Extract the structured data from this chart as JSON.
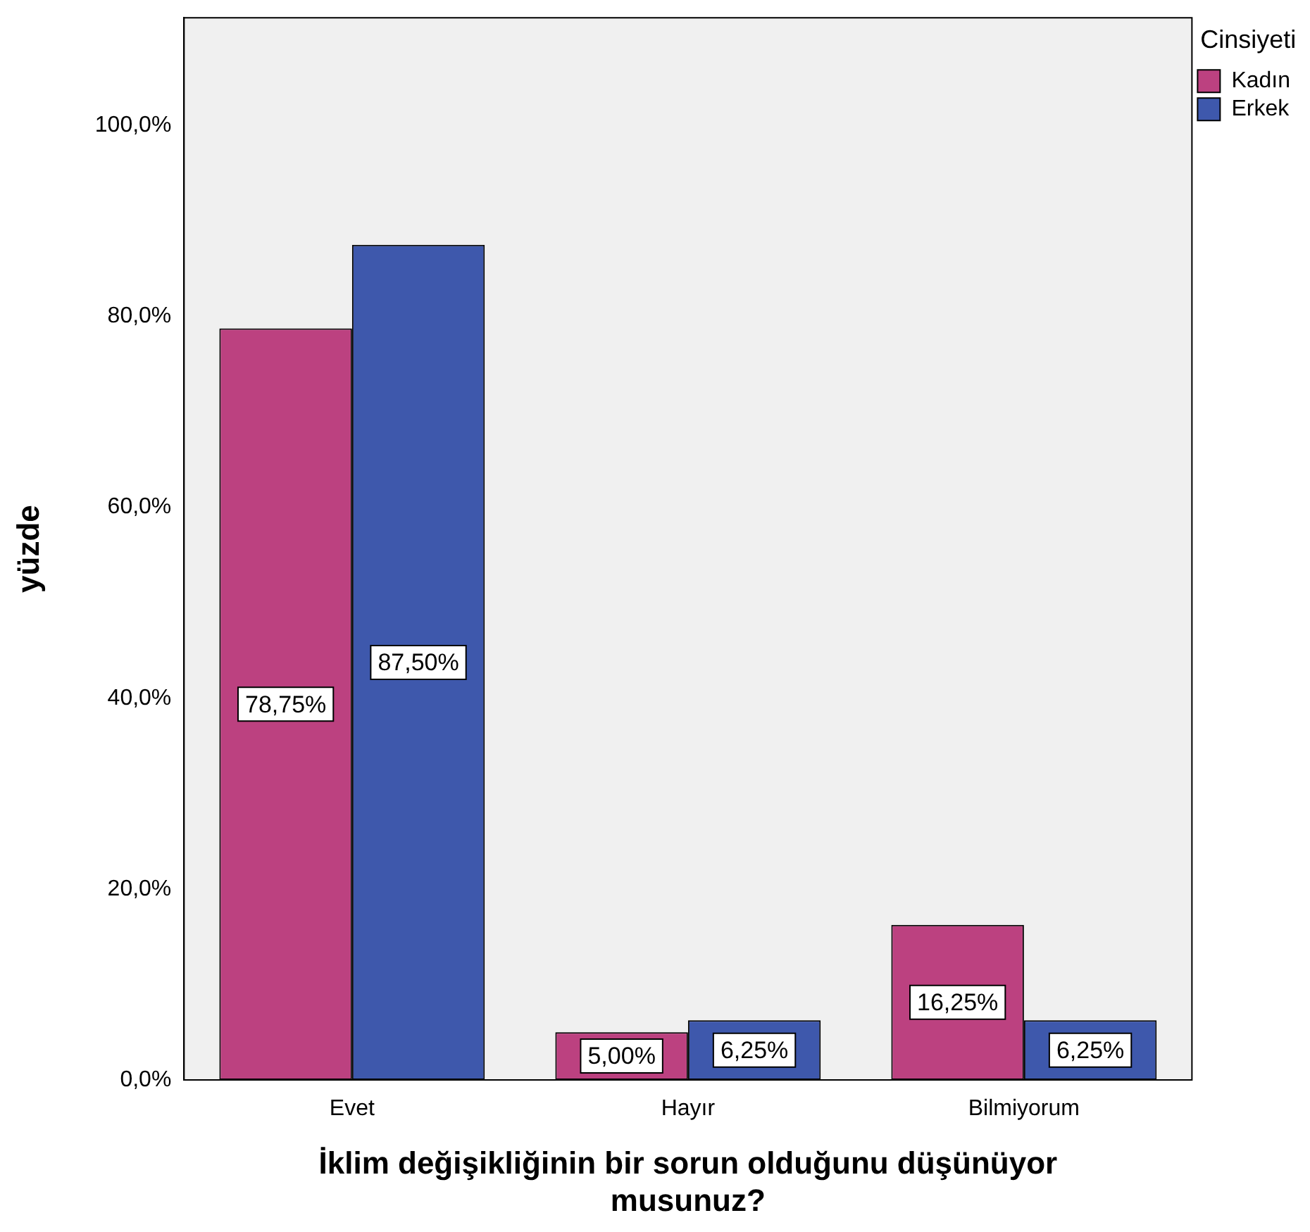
{
  "chart_data": {
    "type": "bar",
    "xlabel": "İklim değişikliğinin bir sorun olduğunu düşünüyor musunuz?",
    "ylabel": "yüzde",
    "legend_title": "Cinsiyeti",
    "legend": "top right",
    "categories": [
      "Evet",
      "Hayır",
      "Bilmiyorum"
    ],
    "series": [
      {
        "name": "Kadın",
        "color": "#bc4180",
        "values": [
          78.75,
          5.0,
          16.25
        ],
        "value_labels": [
          "78,75%",
          "5,00%",
          "16,25%"
        ]
      },
      {
        "name": "Erkek",
        "color": "#3e58ac",
        "values": [
          87.5,
          6.25,
          6.25
        ],
        "value_labels": [
          "87,50%",
          "6,25%",
          "6,25%"
        ]
      }
    ],
    "ylim": [
      0,
      111.3
    ],
    "yticks": [
      {
        "value": 0,
        "label": "0,0%"
      },
      {
        "value": 20,
        "label": "20,0%"
      },
      {
        "value": 40,
        "label": "40,0%"
      },
      {
        "value": 60,
        "label": "60,0%"
      },
      {
        "value": 80,
        "label": "80,0%"
      },
      {
        "value": 100,
        "label": "100,0%"
      }
    ],
    "grid": false
  }
}
